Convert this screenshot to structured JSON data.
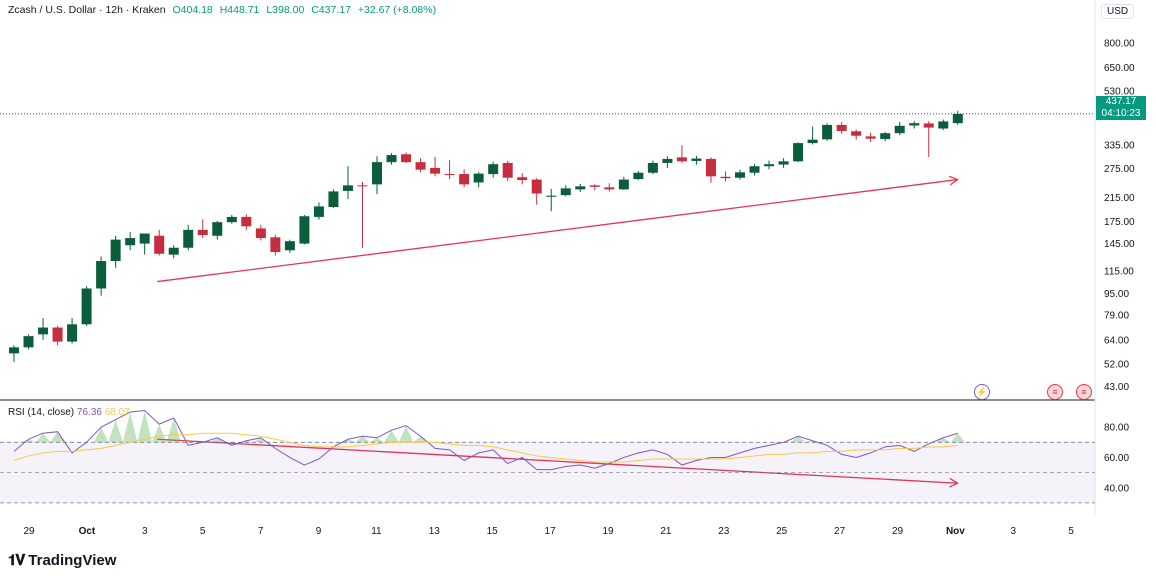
{
  "header": {
    "symbol": "Zcash / U.S. Dollar · 12h · Kraken",
    "open": "O404.18",
    "high": "H448.71",
    "low": "L398.00",
    "close": "C437.17",
    "change": "+32.67 (+8.08%)"
  },
  "price_scale": {
    "currency": "USD",
    "ticks": [
      "800.00",
      "650.00",
      "530.00",
      "335.00",
      "275.00",
      "215.00",
      "175.00",
      "145.00",
      "115.00",
      "95.00",
      "79.00",
      "64.00",
      "52.00",
      "43.00"
    ],
    "last_price": "437.17",
    "countdown": "04:10:23"
  },
  "rsi": {
    "title": "RSI (14, close)",
    "value": "76.36",
    "ma_value": "68.07",
    "ticks": [
      "80.00",
      "60.00",
      "40.00"
    ],
    "upper_band": 70,
    "lower_band": 30,
    "ylim": [
      24,
      90
    ]
  },
  "time_axis": {
    "labels": [
      "29",
      "Oct",
      "3",
      "5",
      "7",
      "9",
      "11",
      "13",
      "15",
      "17",
      "19",
      "21",
      "23",
      "25",
      "27",
      "29",
      "Nov",
      "3",
      "5"
    ]
  },
  "brand": {
    "name": "TradingView",
    "logo": "tradingview-logo-icon"
  },
  "colors": {
    "up": "#089981",
    "down": "#f23645",
    "up_fill": "#0b5e3a",
    "down_fill": "#c62d3f",
    "rsi": "#7e57c2",
    "rsi_ma": "#f7c948",
    "arrow": "#e8344e"
  },
  "chart_data": {
    "type": "candlestick",
    "scale": "log",
    "ylim": [
      40,
      900
    ],
    "candles": [
      {
        "o": 57,
        "h": 61,
        "l": 53,
        "c": 60
      },
      {
        "o": 60,
        "h": 67,
        "l": 59,
        "c": 66
      },
      {
        "o": 67,
        "h": 77,
        "l": 64,
        "c": 71
      },
      {
        "o": 71,
        "h": 72,
        "l": 61,
        "c": 63
      },
      {
        "o": 63,
        "h": 77,
        "l": 62,
        "c": 73
      },
      {
        "o": 73,
        "h": 101,
        "l": 72,
        "c": 99
      },
      {
        "o": 99,
        "h": 130,
        "l": 93,
        "c": 125
      },
      {
        "o": 125,
        "h": 155,
        "l": 118,
        "c": 150
      },
      {
        "o": 143,
        "h": 160,
        "l": 137,
        "c": 152
      },
      {
        "o": 145,
        "h": 157,
        "l": 132,
        "c": 158
      },
      {
        "o": 155,
        "h": 163,
        "l": 131,
        "c": 133
      },
      {
        "o": 132,
        "h": 143,
        "l": 128,
        "c": 140
      },
      {
        "o": 140,
        "h": 170,
        "l": 137,
        "c": 163
      },
      {
        "o": 163,
        "h": 178,
        "l": 152,
        "c": 156
      },
      {
        "o": 155,
        "h": 176,
        "l": 150,
        "c": 174
      },
      {
        "o": 174,
        "h": 185,
        "l": 172,
        "c": 182
      },
      {
        "o": 182,
        "h": 186,
        "l": 163,
        "c": 168
      },
      {
        "o": 165,
        "h": 170,
        "l": 149,
        "c": 152
      },
      {
        "o": 153,
        "h": 156,
        "l": 131,
        "c": 135
      },
      {
        "o": 137,
        "h": 150,
        "l": 134,
        "c": 148
      },
      {
        "o": 145,
        "h": 185,
        "l": 144,
        "c": 183
      },
      {
        "o": 182,
        "h": 206,
        "l": 178,
        "c": 199
      },
      {
        "o": 198,
        "h": 230,
        "l": 196,
        "c": 226
      },
      {
        "o": 227,
        "h": 280,
        "l": 212,
        "c": 238
      },
      {
        "o": 238,
        "h": 245,
        "l": 140,
        "c": 236
      },
      {
        "o": 240,
        "h": 305,
        "l": 221,
        "c": 290
      },
      {
        "o": 290,
        "h": 313,
        "l": 284,
        "c": 308
      },
      {
        "o": 310,
        "h": 315,
        "l": 288,
        "c": 290
      },
      {
        "o": 290,
        "h": 300,
        "l": 266,
        "c": 272
      },
      {
        "o": 276,
        "h": 303,
        "l": 257,
        "c": 263
      },
      {
        "o": 262,
        "h": 295,
        "l": 251,
        "c": 260
      },
      {
        "o": 262,
        "h": 273,
        "l": 234,
        "c": 240
      },
      {
        "o": 244,
        "h": 267,
        "l": 234,
        "c": 263
      },
      {
        "o": 262,
        "h": 291,
        "l": 254,
        "c": 285
      },
      {
        "o": 288,
        "h": 293,
        "l": 247,
        "c": 254
      },
      {
        "o": 255,
        "h": 264,
        "l": 240,
        "c": 249
      },
      {
        "o": 250,
        "h": 253,
        "l": 202,
        "c": 222
      },
      {
        "o": 216,
        "h": 231,
        "l": 191,
        "c": 218
      },
      {
        "o": 219,
        "h": 238,
        "l": 217,
        "c": 232
      },
      {
        "o": 230,
        "h": 241,
        "l": 225,
        "c": 236
      },
      {
        "o": 238,
        "h": 240,
        "l": 228,
        "c": 235
      },
      {
        "o": 234,
        "h": 242,
        "l": 226,
        "c": 230
      },
      {
        "o": 230,
        "h": 256,
        "l": 229,
        "c": 250
      },
      {
        "o": 251,
        "h": 269,
        "l": 249,
        "c": 265
      },
      {
        "o": 265,
        "h": 294,
        "l": 262,
        "c": 288
      },
      {
        "o": 288,
        "h": 305,
        "l": 276,
        "c": 298
      },
      {
        "o": 302,
        "h": 335,
        "l": 288,
        "c": 292
      },
      {
        "o": 293,
        "h": 306,
        "l": 284,
        "c": 299
      },
      {
        "o": 298,
        "h": 302,
        "l": 243,
        "c": 257
      },
      {
        "o": 256,
        "h": 268,
        "l": 246,
        "c": 253
      },
      {
        "o": 254,
        "h": 272,
        "l": 250,
        "c": 266
      },
      {
        "o": 265,
        "h": 285,
        "l": 259,
        "c": 280
      },
      {
        "o": 280,
        "h": 294,
        "l": 273,
        "c": 285
      },
      {
        "o": 284,
        "h": 300,
        "l": 276,
        "c": 292
      },
      {
        "o": 292,
        "h": 343,
        "l": 290,
        "c": 341
      },
      {
        "o": 341,
        "h": 392,
        "l": 337,
        "c": 351
      },
      {
        "o": 352,
        "h": 403,
        "l": 348,
        "c": 398
      },
      {
        "o": 398,
        "h": 408,
        "l": 369,
        "c": 378
      },
      {
        "o": 377,
        "h": 383,
        "l": 351,
        "c": 363
      },
      {
        "o": 361,
        "h": 373,
        "l": 344,
        "c": 354
      },
      {
        "o": 353,
        "h": 375,
        "l": 346,
        "c": 371
      },
      {
        "o": 371,
        "h": 408,
        "l": 365,
        "c": 395
      },
      {
        "o": 396,
        "h": 411,
        "l": 386,
        "c": 404
      },
      {
        "o": 403,
        "h": 411,
        "l": 303,
        "c": 389
      },
      {
        "o": 386,
        "h": 417,
        "l": 381,
        "c": 410
      },
      {
        "o": 404,
        "h": 449,
        "l": 398,
        "c": 437
      }
    ],
    "rsi_values": [
      64,
      72,
      76,
      77,
      63,
      70,
      80,
      85,
      90,
      91,
      82,
      86,
      68,
      70,
      73,
      68,
      71,
      73,
      66,
      60,
      55,
      59,
      67,
      72,
      74,
      73,
      78,
      81,
      74,
      66,
      65,
      58,
      63,
      65,
      56,
      60,
      52,
      52,
      54,
      55,
      53,
      56,
      60,
      63,
      65,
      62,
      55,
      58,
      60,
      60,
      63,
      66,
      68,
      70,
      74,
      71,
      68,
      62,
      60,
      63,
      67,
      68,
      64,
      69,
      73,
      76
    ],
    "rsi_ma": [
      58,
      61,
      63,
      64,
      64,
      65,
      66,
      68,
      70,
      72,
      74,
      75,
      75,
      76,
      76,
      76,
      75,
      74,
      72,
      70,
      68,
      67,
      67,
      67,
      68,
      69,
      70,
      70,
      70,
      70,
      69,
      68,
      68,
      67,
      65,
      63,
      61,
      60,
      59,
      58,
      57,
      57,
      57,
      58,
      59,
      59,
      59,
      59,
      59,
      59,
      60,
      61,
      62,
      62,
      63,
      63,
      64,
      64,
      65,
      65,
      65,
      66,
      66,
      67,
      67,
      68
    ],
    "trend_arrow_price": {
      "from": [
        3,
        105
      ],
      "to": [
        30.5,
        250
      ]
    },
    "trend_arrow_rsi": {
      "from": [
        3,
        72
      ],
      "to": [
        30.5,
        43
      ]
    }
  }
}
